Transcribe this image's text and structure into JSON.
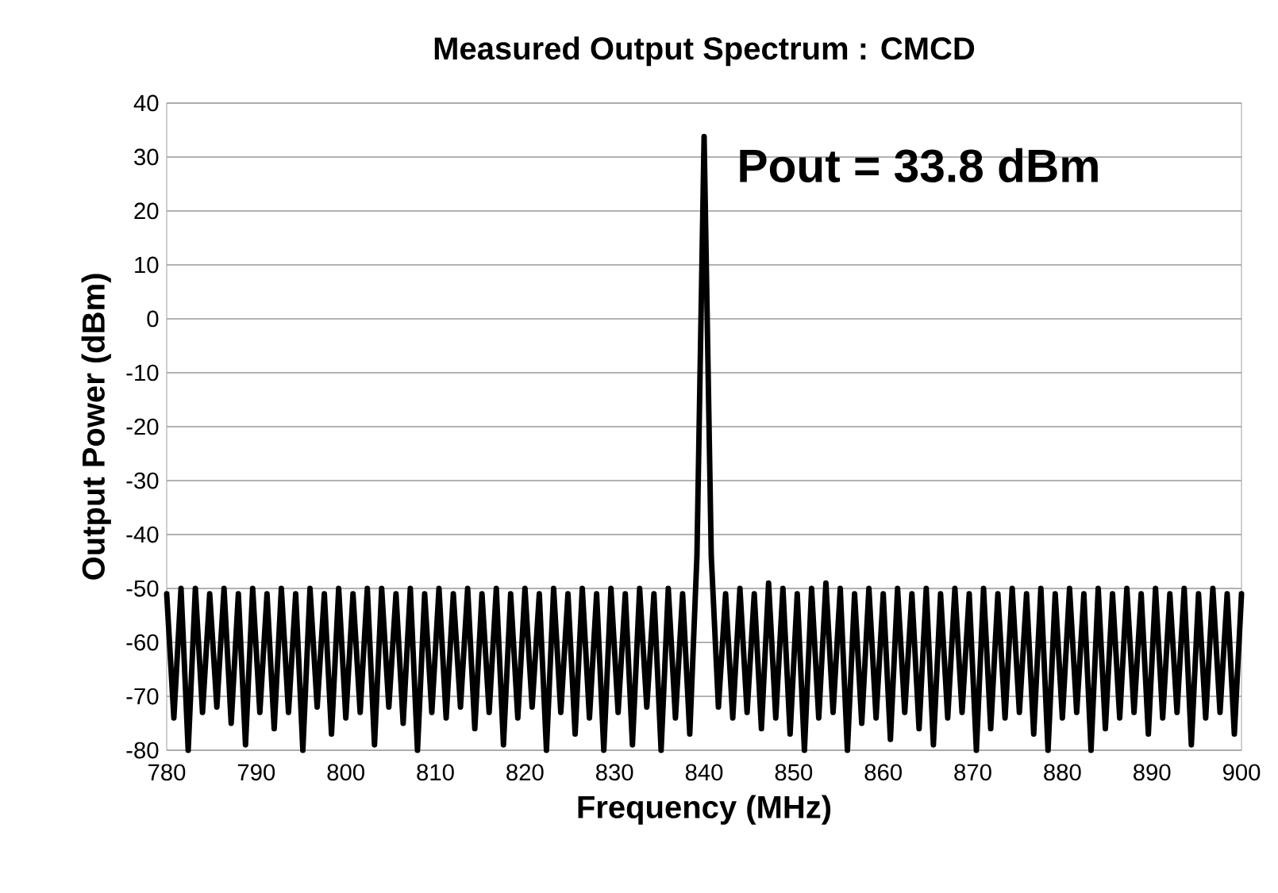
{
  "chart_data": {
    "type": "line",
    "title": "Measured Output Spectrum : CMCD",
    "xlabel": "Frequency (MHz)",
    "ylabel": "Output Power (dBm)",
    "annotations": [
      {
        "text": "Pout = 33.8 dBm",
        "x": 840,
        "y": 33.8
      }
    ],
    "x": [
      780,
      780.8,
      781.6,
      782.4,
      783.2,
      784,
      784.8,
      785.6,
      786.4,
      787.2,
      788,
      788.8,
      789.6,
      790.4,
      791.2,
      792,
      792.8,
      793.6,
      794.4,
      795.2,
      796,
      796.8,
      797.6,
      798.4,
      799.2,
      800,
      800.8,
      801.6,
      802.4,
      803.2,
      804,
      804.8,
      805.6,
      806.4,
      807.2,
      808,
      808.8,
      809.6,
      810.4,
      811.2,
      812,
      812.8,
      813.6,
      814.4,
      815.2,
      816,
      816.8,
      817.6,
      818.4,
      819.2,
      820,
      820.8,
      821.6,
      822.4,
      823.2,
      824,
      824.8,
      825.6,
      826.4,
      827.2,
      828,
      828.8,
      829.6,
      830.4,
      831.2,
      832,
      832.8,
      833.6,
      834.4,
      835.2,
      836,
      836.8,
      837.6,
      838.4,
      839.2,
      840,
      840.8,
      841.6,
      842.4,
      843.2,
      844,
      844.8,
      845.6,
      846.4,
      847.2,
      848,
      848.8,
      849.6,
      850.4,
      851.2,
      852,
      852.8,
      853.6,
      854.4,
      855.2,
      856,
      856.8,
      857.6,
      858.4,
      859.2,
      860,
      860.8,
      861.6,
      862.4,
      863.2,
      864,
      864.8,
      865.6,
      866.4,
      867.2,
      868,
      868.8,
      869.6,
      870.4,
      871.2,
      872,
      872.8,
      873.6,
      874.4,
      875.2,
      876,
      876.8,
      877.6,
      878.4,
      879.2,
      880,
      880.8,
      881.6,
      882.4,
      883.2,
      884,
      884.8,
      885.6,
      886.4,
      887.2,
      888,
      888.8,
      889.6,
      890.4,
      891.2,
      892,
      892.8,
      893.6,
      894.4,
      895.2,
      896,
      896.8,
      897.6,
      898.4,
      899.2,
      900
    ],
    "series": [
      {
        "color": "#000000",
        "values": [
          -51,
          -74,
          -50,
          -80,
          -50,
          -73,
          -51,
          -72,
          -50,
          -75,
          -51,
          -79,
          -50,
          -73,
          -51,
          -76,
          -50,
          -73,
          -51,
          -80,
          -50,
          -72,
          -51,
          -77,
          -50,
          -74,
          -51,
          -73,
          -50,
          -79,
          -50,
          -72,
          -51,
          -75,
          -50,
          -80,
          -51,
          -73,
          -50,
          -74,
          -51,
          -72,
          -50,
          -76,
          -51,
          -73,
          -50,
          -79,
          -51,
          -74,
          -50,
          -72,
          -51,
          -80,
          -50,
          -73,
          -51,
          -77,
          -50,
          -74,
          -51,
          -80,
          -50,
          -73,
          -51,
          -79,
          -50,
          -72,
          -51,
          -80,
          -50,
          -74,
          -51,
          -77,
          -44,
          33.8,
          -44,
          -72,
          -51,
          -74,
          -50,
          -73,
          -51,
          -76,
          -49,
          -74,
          -50,
          -77,
          -51,
          -80,
          -50,
          -74,
          -49,
          -73,
          -50,
          -80,
          -51,
          -75,
          -50,
          -74,
          -51,
          -78,
          -50,
          -73,
          -51,
          -76,
          -50,
          -79,
          -51,
          -74,
          -50,
          -73,
          -51,
          -80,
          -50,
          -76,
          -51,
          -74,
          -50,
          -73,
          -51,
          -77,
          -50,
          -80,
          -51,
          -74,
          -50,
          -73,
          -51,
          -80,
          -50,
          -76,
          -51,
          -74,
          -50,
          -73,
          -51,
          -77,
          -50,
          -74,
          -51,
          -73,
          -50,
          -79,
          -51,
          -74,
          -50,
          -73,
          -51,
          -77,
          -51
        ]
      }
    ],
    "xlim": [
      780,
      900
    ],
    "ylim": [
      -80,
      40
    ],
    "xticks": [
      780,
      790,
      800,
      810,
      820,
      830,
      840,
      850,
      860,
      870,
      880,
      890,
      900
    ],
    "yticks": [
      -80,
      -70,
      -60,
      -50,
      -40,
      -30,
      -20,
      -10,
      0,
      10,
      20,
      30,
      40
    ],
    "grid": "y",
    "marker": "none",
    "line_style": "solid"
  }
}
